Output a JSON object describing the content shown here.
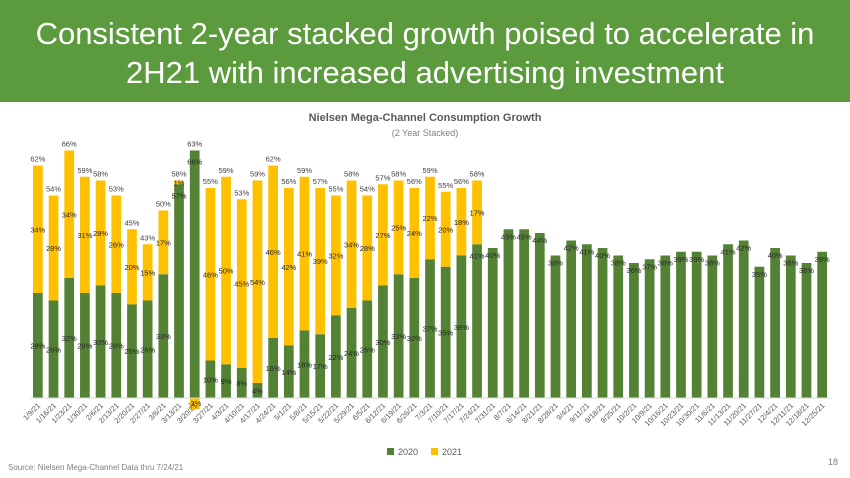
{
  "slide": {
    "title": "Consistent 2-year stacked growth poised to accelerate in 2H21 with increased advertising investment",
    "source": "Source:  Nielsen Mega-Channel Data thru 7/24/21",
    "page_number": "18"
  },
  "colors": {
    "header": "#5b9b3e",
    "series_2020": "#548235",
    "series_2021": "#ffc000"
  },
  "chart_data": {
    "type": "bar",
    "stacked": true,
    "title": "Nielsen Mega-Channel Consumption Growth",
    "subtitle": "(2 Year Stacked)",
    "legend_position": "bottom",
    "grid": false,
    "categories": [
      "1/9/21",
      "1/16/21",
      "1/23/21",
      "1/30/21",
      "2/6/21",
      "2/13/21",
      "2/20/21",
      "2/27/21",
      "3/6/21",
      "3/13/21",
      "3/20/21",
      "3/27/21",
      "4/3/21",
      "4/10/21",
      "4/17/21",
      "4/24/21",
      "5/1/21",
      "5/8/21",
      "5/15/21",
      "5/22/21",
      "5/29/21",
      "6/5/21",
      "6/12/21",
      "6/19/21",
      "6/26/21",
      "7/3/21",
      "7/10/21",
      "7/17/21",
      "7/24/21",
      "7/31/21",
      "8/7/21",
      "8/14/21",
      "8/21/21",
      "8/28/21",
      "9/4/21",
      "9/11/21",
      "9/18/21",
      "9/25/21",
      "10/2/21",
      "10/9/21",
      "10/16/21",
      "10/23/21",
      "10/30/21",
      "11/6/21",
      "11/13/21",
      "11/20/21",
      "11/27/21",
      "12/4/21",
      "12/11/21",
      "12/18/21",
      "12/25/21"
    ],
    "series": [
      {
        "name": "2020",
        "values": [
          28,
          26,
          32,
          28,
          30,
          28,
          25,
          26,
          33,
          57,
          66,
          10,
          9,
          8,
          4,
          16,
          14,
          18,
          17,
          22,
          24,
          26,
          30,
          33,
          32,
          37,
          35,
          38,
          41,
          40,
          45,
          45,
          44,
          38,
          42,
          41,
          40,
          38,
          36,
          37,
          38,
          39,
          39,
          38,
          41,
          42,
          35,
          40,
          38,
          36,
          39
        ]
      },
      {
        "name": "2021",
        "values": [
          34,
          28,
          34,
          31,
          28,
          26,
          20,
          15,
          17,
          1,
          -3,
          46,
          50,
          45,
          54,
          46,
          42,
          41,
          39,
          32,
          34,
          28,
          27,
          25,
          24,
          22,
          20,
          18,
          17,
          null,
          null,
          null,
          null,
          null,
          null,
          null,
          null,
          null,
          null,
          null,
          null,
          null,
          null,
          null,
          null,
          null,
          null,
          null,
          null,
          null,
          null
        ]
      }
    ],
    "totals": [
      62,
      54,
      66,
      59,
      58,
      53,
      45,
      43,
      50,
      58,
      63,
      55,
      59,
      53,
      59,
      62,
      56,
      59,
      57,
      55,
      58,
      54,
      57,
      58,
      56,
      59,
      55,
      56,
      58
    ]
  }
}
